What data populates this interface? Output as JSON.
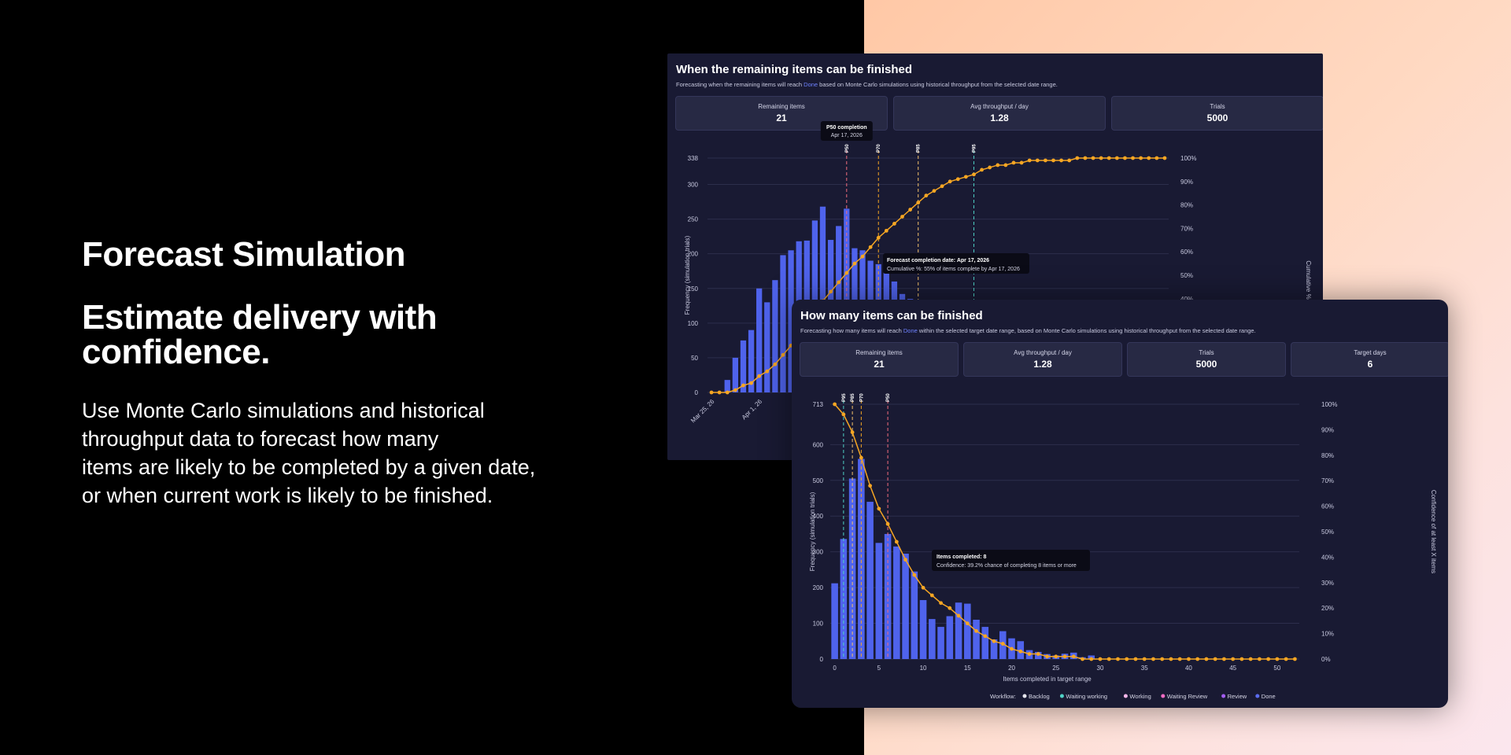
{
  "hero": {
    "title": "Forecast Simulation",
    "subtitle": "Estimate delivery with confidence.",
    "body_lines": [
      "Use Monte Carlo simulations and historical",
      "throughput data to forecast how many",
      "items are likely to be completed by a given date,",
      "or when current work is likely to be finished."
    ]
  },
  "colors": {
    "background_left": "#000000",
    "card_background": "#191a33",
    "bar": "#4f63ec",
    "line": "#f6a623",
    "p50": "#f26d7d",
    "p70": "#f6a623",
    "p85": "#f4c26b",
    "p95": "#4fd1c5"
  },
  "card1": {
    "title": "When the remaining items can be finished",
    "subtitle_before": "Forecasting when the remaining items will reach ",
    "subtitle_highlight": "Done",
    "subtitle_after": " based on Monte Carlo simulations using historical throughput from the selected date range.",
    "stats": [
      {
        "label": "Remaining items",
        "value": "21"
      },
      {
        "label": "Avg throughput / day",
        "value": "1.28"
      },
      {
        "label": "Trials",
        "value": "5000"
      }
    ],
    "tooltip_p50": {
      "title": "P50 completion",
      "value": "Apr 17, 2026"
    },
    "tooltip_point": {
      "title": "Forecast completion date: Apr 17, 2026",
      "body": "Cumulative %: 55% of items complete by Apr 17, 2026"
    }
  },
  "card2": {
    "title": "How many items can be finished",
    "subtitle_before": "Forecasting how many items will reach ",
    "subtitle_highlight": "Done",
    "subtitle_after": " within the selected target date range, based on Monte Carlo simulations using historical throughput from the selected date range.",
    "stats": [
      {
        "label": "Remaining items",
        "value": "21"
      },
      {
        "label": "Avg throughput / day",
        "value": "1.28"
      },
      {
        "label": "Trials",
        "value": "5000"
      },
      {
        "label": "Target days",
        "value": "6"
      }
    ],
    "tooltip_point": {
      "title": "Items completed: 8",
      "body": "Confidence: 39.2% chance of completing 8 items or more"
    },
    "legend": {
      "label": "Workflow:",
      "items": [
        {
          "name": "Backlog",
          "color": "#e6e6ee"
        },
        {
          "name": "Waiting working",
          "color": "#4fd1c5"
        },
        {
          "name": "Working",
          "color": "#f3b6e8"
        },
        {
          "name": "Waiting Review",
          "color": "#f06cc4"
        },
        {
          "name": "Review",
          "color": "#a35df2"
        },
        {
          "name": "Done",
          "color": "#5b6cf0"
        }
      ]
    }
  },
  "chart_data": [
    {
      "type": "bar",
      "series_line_type": "line",
      "ylabel": "Frequency (simulation trials)",
      "y2label": "Cumulative %",
      "ylim": [
        0,
        338
      ],
      "y_ticks": [
        0,
        50,
        100,
        150,
        200,
        250,
        300,
        338
      ],
      "y2_ticks": [
        "40%",
        "50%",
        "60%",
        "70%",
        "80%",
        "90%",
        "100%"
      ],
      "x_tick_labels": [
        "Mar 25, 26",
        "Apr 1, 26"
      ],
      "categories_count": 58,
      "values": [
        0,
        0,
        18,
        50,
        75,
        90,
        150,
        130,
        162,
        198,
        205,
        218,
        219,
        248,
        268,
        220,
        240,
        265,
        208,
        205,
        190,
        185,
        178,
        160,
        142,
        135
      ],
      "cumulative_percent": [
        0,
        0,
        0,
        1,
        3,
        4,
        7,
        9,
        12,
        16,
        20,
        25,
        29,
        34,
        39,
        43,
        47,
        51,
        55,
        58,
        62,
        66,
        69,
        72,
        75,
        78,
        81,
        84,
        86,
        88,
        90,
        91,
        92,
        93,
        95,
        96,
        97,
        97,
        98,
        98,
        99,
        99,
        99,
        99,
        99,
        99,
        100,
        100,
        100,
        100,
        100,
        100,
        100,
        100,
        100,
        100,
        100,
        100
      ],
      "percentile_markers": [
        {
          "label": "P50",
          "index": 17
        },
        {
          "label": "P70",
          "index": 21
        },
        {
          "label": "P85",
          "index": 26
        },
        {
          "label": "P95",
          "index": 33
        }
      ],
      "grid": true
    },
    {
      "type": "bar",
      "series_line_type": "line",
      "xlabel": "Items completed in target range",
      "ylabel": "Frequency (simulation trials)",
      "y2label": "Confidence of at least X items",
      "ylim": [
        0,
        713
      ],
      "y_ticks": [
        0,
        100,
        200,
        300,
        400,
        500,
        600,
        713
      ],
      "y2_ticks": [
        "0%",
        "10%",
        "20%",
        "30%",
        "40%",
        "50%",
        "60%",
        "70%",
        "80%",
        "90%",
        "100%"
      ],
      "x_ticks": [
        0,
        5,
        10,
        15,
        20,
        25,
        30,
        35,
        40,
        45,
        50
      ],
      "x": [
        0,
        1,
        2,
        3,
        4,
        5,
        6,
        7,
        8,
        9,
        10,
        11,
        12,
        13,
        14,
        15,
        16,
        17,
        18,
        19,
        20,
        21,
        22,
        23,
        24,
        25,
        26,
        27,
        28,
        29
      ],
      "values": [
        212,
        336,
        505,
        560,
        440,
        325,
        350,
        315,
        295,
        245,
        165,
        112,
        90,
        120,
        158,
        155,
        110,
        90,
        55,
        78,
        58,
        50,
        25,
        20,
        14,
        10,
        15,
        18,
        5,
        10
      ],
      "confidence_percent": [
        100,
        96,
        89,
        79,
        68,
        59,
        53,
        46,
        39,
        33,
        28,
        25,
        22,
        20,
        17,
        14,
        11,
        9,
        7,
        6,
        4,
        3,
        2,
        2,
        1,
        1,
        1,
        1,
        0,
        0,
        0,
        0,
        0,
        0,
        0,
        0,
        0,
        0,
        0,
        0,
        0,
        0,
        0,
        0,
        0,
        0,
        0,
        0,
        0,
        0,
        0,
        0,
        0
      ],
      "percentile_markers": [
        {
          "label": "P95",
          "x": 1
        },
        {
          "label": "P85",
          "x": 2
        },
        {
          "label": "P70",
          "x": 3
        },
        {
          "label": "P50",
          "x": 6
        }
      ],
      "grid": true,
      "legend_position": "bottom-center"
    }
  ]
}
